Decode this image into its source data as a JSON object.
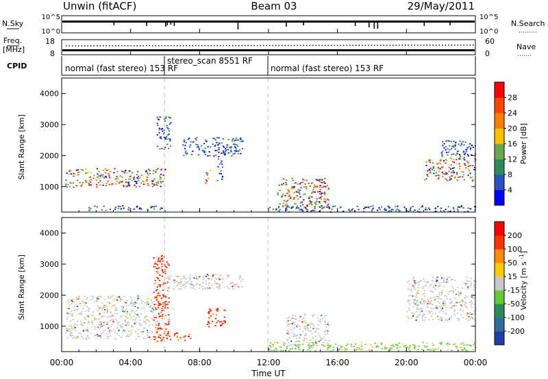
{
  "header": {
    "station": "Unwin (fitACF)",
    "beam": "Beam 03",
    "date": "29/May/2011"
  },
  "strips": {
    "nsky_label": "N.Sky",
    "nsky_ticks": [
      "10^5",
      "10^0"
    ],
    "nsky_right_ticks": [
      "10^5",
      "10^0"
    ],
    "nsearch_label": "N.Search",
    "freq_label": "Freq.",
    "freq_unit": "[MHz]",
    "freq_ticks": [
      "18",
      "8"
    ],
    "nave_ticks": [
      "60",
      "0"
    ],
    "nave_label": "Nave",
    "cpid_label": "CPID",
    "cpid_segments": [
      {
        "label": "normal (fast stereo) 153 RF",
        "start": 0,
        "end": 6
      },
      {
        "label": "stereo_scan 8551 RF",
        "start": 6,
        "end": 12
      },
      {
        "label": "normal (fast stereo) 153 RF",
        "start": 12,
        "end": 24
      }
    ]
  },
  "xaxis": {
    "label": "Time UT",
    "ticks": [
      "00:00",
      "04:00",
      "08:00",
      "12:00",
      "16:00",
      "20:00",
      "00:00"
    ]
  },
  "chart_data": [
    {
      "type": "heatmap",
      "name": "power-panel",
      "ylabel": "Slant Range [km]",
      "xlim": [
        0,
        24
      ],
      "ylim": [
        180,
        4500
      ],
      "yticks": [
        "1000",
        "2000",
        "3000",
        "4000"
      ],
      "colorbar": {
        "label": "Power [dB]",
        "ticks": [
          "4",
          "8",
          "12",
          "16",
          "20",
          "24",
          "28"
        ],
        "colors": [
          "#0000ff",
          "#2a52be",
          "#2e8b57",
          "#6aa84f",
          "#ffc000",
          "#ff7f00",
          "#ff4500",
          "#ff0000"
        ]
      },
      "bands": [
        {
          "t": [
            0.2,
            6.0
          ],
          "r": [
            1000,
            1600
          ],
          "level": "mixed"
        },
        {
          "t": [
            1.5,
            5.8
          ],
          "r": [
            250,
            400
          ],
          "level": "low"
        },
        {
          "t": [
            5.5,
            6.3
          ],
          "r": [
            2200,
            3300
          ],
          "level": "low"
        },
        {
          "t": [
            7.0,
            10.5
          ],
          "r": [
            2000,
            2600
          ],
          "level": "low"
        },
        {
          "t": [
            8.3,
            8.6
          ],
          "r": [
            1100,
            1600
          ],
          "level": "mixed"
        },
        {
          "t": [
            9.0,
            9.3
          ],
          "r": [
            1200,
            2000
          ],
          "level": "low"
        },
        {
          "t": [
            12.5,
            15.5
          ],
          "r": [
            300,
            1300
          ],
          "level": "mixed"
        },
        {
          "t": [
            12.0,
            24.0
          ],
          "r": [
            200,
            400
          ],
          "level": "low"
        },
        {
          "t": [
            21.0,
            24.0
          ],
          "r": [
            1200,
            1900
          ],
          "level": "mixed"
        },
        {
          "t": [
            22.0,
            24.0
          ],
          "r": [
            1900,
            2500
          ],
          "level": "low"
        }
      ]
    },
    {
      "type": "heatmap",
      "name": "velocity-panel",
      "ylabel": "Slant Range [km]",
      "xlim": [
        0,
        24
      ],
      "ylim": [
        180,
        4500
      ],
      "yticks": [
        "1000",
        "2000",
        "3000",
        "4000"
      ],
      "colorbar": {
        "label": "Velocity [m s^-1]",
        "ticks": [
          "200",
          "100",
          "50",
          "15",
          "-15",
          "-50",
          "-100",
          "-200"
        ],
        "colors": [
          "#1e3faa",
          "#2f6e9a",
          "#2e8b57",
          "#66cc33",
          "#c8c8c8",
          "#ffcc00",
          "#ff8c00",
          "#ff3300",
          "#ff0000"
        ]
      },
      "bands": [
        {
          "t": [
            0.2,
            5.6
          ],
          "r": [
            600,
            2000
          ],
          "level": "gray"
        },
        {
          "t": [
            5.3,
            6.2
          ],
          "r": [
            500,
            3300
          ],
          "level": "red"
        },
        {
          "t": [
            5.9,
            10.5
          ],
          "r": [
            2200,
            2700
          ],
          "level": "gray"
        },
        {
          "t": [
            6.0,
            7.5
          ],
          "r": [
            550,
            800
          ],
          "level": "red"
        },
        {
          "t": [
            8.4,
            9.5
          ],
          "r": [
            1000,
            1600
          ],
          "level": "red"
        },
        {
          "t": [
            12.0,
            24.0
          ],
          "r": [
            200,
            500
          ],
          "level": "green"
        },
        {
          "t": [
            13.0,
            15.5
          ],
          "r": [
            400,
            1400
          ],
          "level": "gray"
        },
        {
          "t": [
            20.0,
            24.0
          ],
          "r": [
            1200,
            2600
          ],
          "level": "gray"
        }
      ]
    }
  ]
}
